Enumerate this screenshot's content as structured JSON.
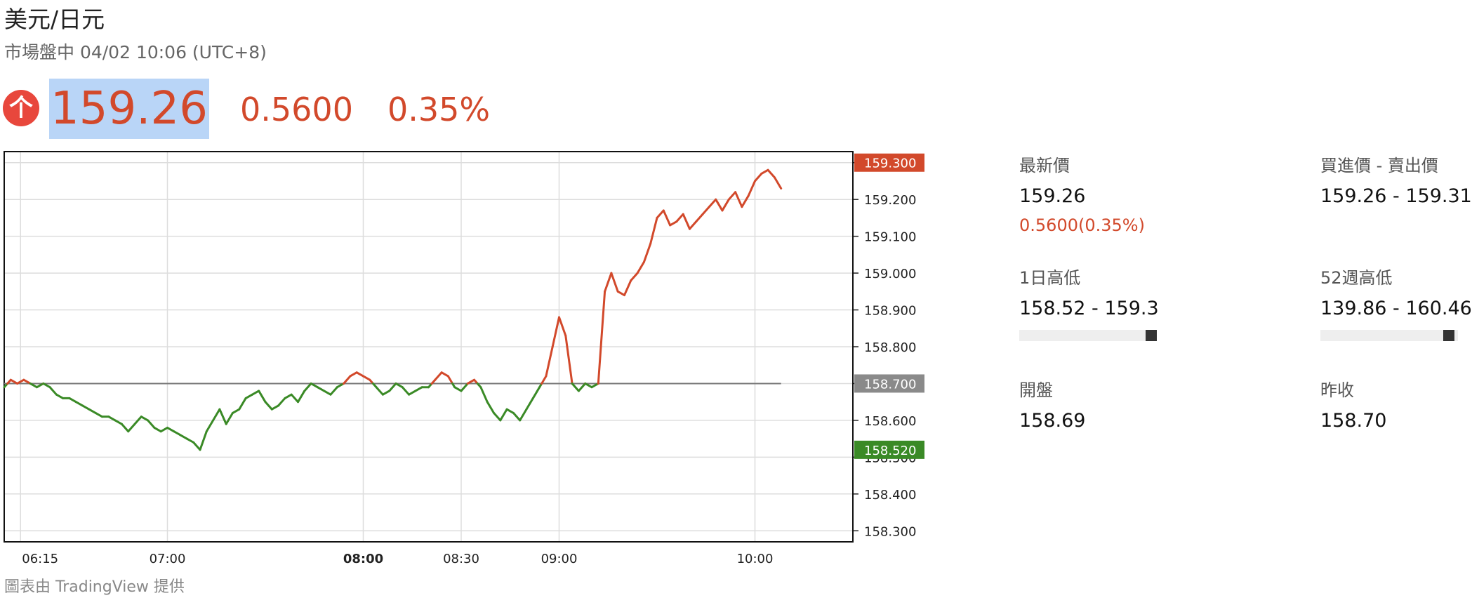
{
  "header": {
    "title": "美元/日元",
    "status": "市場盤中 04/02 10:06 (UTC+8)"
  },
  "quote": {
    "direction_icon": "up-arrow-icon",
    "price": "159.26",
    "change": "0.5600",
    "change_pct": "0.35%",
    "up_color": "#d2492b",
    "down_color": "#3a8a26",
    "highlight_color": "#b9d5f7"
  },
  "stats": {
    "latest_label": "最新價",
    "latest_value": "159.26",
    "latest_change": "0.5600(0.35%)",
    "bid_ask_label": "買進價 - 賣出價",
    "bid_ask_value": "159.26 - 159.31",
    "day_range_label": "1日高低",
    "day_range_value": "158.52 - 159.3",
    "day_range_position": 1.0,
    "week52_range_label": "52週高低",
    "week52_range_value": "139.86 - 160.46",
    "week52_range_position": 0.97,
    "open_label": "開盤",
    "open_value": "158.69",
    "prev_close_label": "昨收",
    "prev_close_value": "158.70"
  },
  "chart_data": {
    "type": "line",
    "x_ticks": [
      "06:15",
      "07:00",
      "08:00",
      "08:30",
      "09:00",
      "10:00"
    ],
    "x_ticks_bold": [
      "08:00"
    ],
    "y_ticks": [
      "159.300",
      "159.200",
      "159.100",
      "159.000",
      "158.900",
      "158.800",
      "158.700",
      "158.600",
      "158.500",
      "158.400",
      "158.300"
    ],
    "ylim": [
      158.27,
      159.33
    ],
    "x_range_minutes": [
      "06:10",
      "10:30"
    ],
    "baseline": 158.7,
    "grid": true,
    "price_labels": [
      {
        "text": "159.300",
        "value": 159.3,
        "color": "#d2492b"
      },
      {
        "text": "158.700",
        "value": 158.7,
        "color": "#8a8a8a"
      },
      {
        "text": "158.520",
        "value": 158.52,
        "color": "#3a8a26"
      }
    ],
    "series": [
      {
        "x": [
          "06:10",
          "06:12",
          "06:14",
          "06:16",
          "06:18",
          "06:20",
          "06:22",
          "06:24",
          "06:26",
          "06:28",
          "06:30",
          "06:32",
          "06:34",
          "06:36",
          "06:38",
          "06:40",
          "06:42",
          "06:44",
          "06:46",
          "06:48",
          "06:50",
          "06:52",
          "06:54",
          "06:56",
          "06:58",
          "07:00",
          "07:02",
          "07:04",
          "07:06",
          "07:08",
          "07:10",
          "07:12",
          "07:14",
          "07:16",
          "07:18",
          "07:20",
          "07:22",
          "07:24",
          "07:26",
          "07:28",
          "07:30",
          "07:32",
          "07:34",
          "07:36",
          "07:38",
          "07:40",
          "07:42",
          "07:44",
          "07:46",
          "07:48",
          "07:50",
          "07:52",
          "07:54",
          "07:56",
          "07:58",
          "08:00",
          "08:02",
          "08:04",
          "08:06",
          "08:08",
          "08:10",
          "08:12",
          "08:14",
          "08:16",
          "08:18",
          "08:20",
          "08:22",
          "08:24",
          "08:26",
          "08:28",
          "08:30",
          "08:32",
          "08:34",
          "08:36",
          "08:38",
          "08:40",
          "08:42",
          "08:44",
          "08:46",
          "08:48",
          "08:50",
          "08:52",
          "08:54",
          "08:56",
          "08:58",
          "09:00",
          "09:02",
          "09:04",
          "09:06",
          "09:08",
          "09:10",
          "09:12",
          "09:14",
          "09:16",
          "09:18",
          "09:20",
          "09:22",
          "09:24",
          "09:26",
          "09:28",
          "09:30",
          "09:32",
          "09:34",
          "09:36",
          "09:38",
          "09:40",
          "09:42",
          "09:44",
          "09:46",
          "09:48",
          "09:50",
          "09:52",
          "09:54",
          "09:56",
          "09:58",
          "10:00",
          "10:02",
          "10:04",
          "10:06",
          "10:08"
        ],
        "values": [
          158.69,
          158.71,
          158.7,
          158.71,
          158.7,
          158.69,
          158.7,
          158.69,
          158.67,
          158.66,
          158.66,
          158.65,
          158.64,
          158.63,
          158.62,
          158.61,
          158.61,
          158.6,
          158.59,
          158.57,
          158.59,
          158.61,
          158.6,
          158.58,
          158.57,
          158.58,
          158.57,
          158.56,
          158.55,
          158.54,
          158.52,
          158.57,
          158.6,
          158.63,
          158.59,
          158.62,
          158.63,
          158.66,
          158.67,
          158.68,
          158.65,
          158.63,
          158.64,
          158.66,
          158.67,
          158.65,
          158.68,
          158.7,
          158.69,
          158.68,
          158.67,
          158.69,
          158.7,
          158.72,
          158.73,
          158.72,
          158.71,
          158.69,
          158.67,
          158.68,
          158.7,
          158.69,
          158.67,
          158.68,
          158.69,
          158.69,
          158.71,
          158.73,
          158.72,
          158.69,
          158.68,
          158.7,
          158.71,
          158.69,
          158.65,
          158.62,
          158.6,
          158.63,
          158.62,
          158.6,
          158.63,
          158.66,
          158.69,
          158.72,
          158.8,
          158.88,
          158.83,
          158.7,
          158.68,
          158.7,
          158.69,
          158.7,
          158.95,
          159.0,
          158.95,
          158.94,
          158.98,
          159.0,
          159.03,
          159.08,
          159.15,
          159.17,
          159.13,
          159.14,
          159.16,
          159.12,
          159.14,
          159.16,
          159.18,
          159.2,
          159.17,
          159.2,
          159.22,
          159.18,
          159.21,
          159.25,
          159.27,
          159.28,
          159.26,
          159.23
        ]
      }
    ]
  },
  "footer": {
    "credit": "圖表由 TradingView 提供"
  }
}
